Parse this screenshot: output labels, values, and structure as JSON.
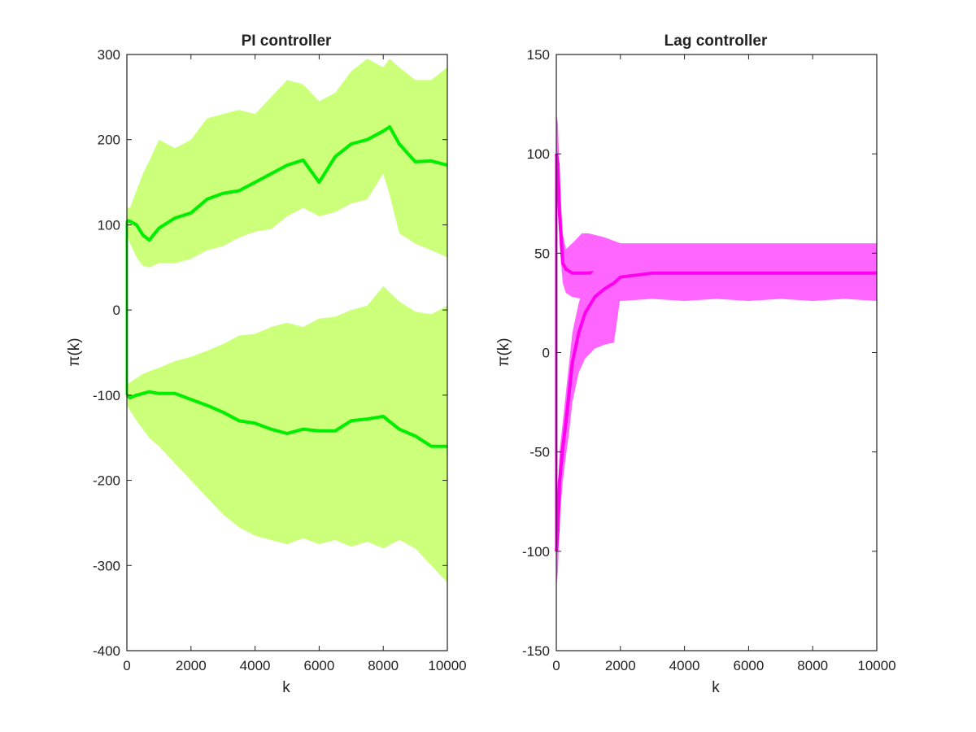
{
  "chart_data": [
    {
      "type": "area",
      "title": "PI controller",
      "xlabel": "k",
      "ylabel": "π(k)",
      "xlim": [
        0,
        10000
      ],
      "ylim": [
        -400,
        300
      ],
      "xticks": [
        "0",
        "2000",
        "4000",
        "6000",
        "8000",
        "10000"
      ],
      "yticks": [
        "300",
        "200",
        "100",
        "0",
        "-100",
        "-200",
        "-300",
        "-400"
      ],
      "grid": false,
      "colors": {
        "band": "#ccff7a",
        "line": "#00ee00"
      },
      "series": [
        {
          "k": [
            0,
            100,
            300,
            500,
            700,
            1000,
            1500,
            2000,
            2500,
            3000,
            3500,
            4000,
            4500,
            5000,
            5500,
            6000,
            6500,
            7000,
            7500,
            8000,
            8200,
            8500,
            9000,
            9500,
            10000
          ],
          "mean": [
            105,
            104,
            100,
            88,
            82,
            96,
            108,
            114,
            130,
            137,
            140,
            150,
            160,
            170,
            176,
            150,
            180,
            195,
            200,
            210,
            215,
            195,
            174,
            175,
            170
          ],
          "upper": [
            120,
            120,
            140,
            160,
            175,
            200,
            190,
            200,
            225,
            230,
            235,
            230,
            250,
            270,
            265,
            245,
            255,
            280,
            295,
            285,
            295,
            285,
            270,
            270,
            285
          ],
          "lower": [
            88,
            78,
            62,
            52,
            50,
            55,
            55,
            60,
            70,
            75,
            85,
            92,
            95,
            110,
            120,
            110,
            115,
            125,
            130,
            160,
            135,
            90,
            78,
            70,
            62
          ]
        },
        {
          "k": [
            0,
            100,
            300,
            500,
            700,
            1000,
            1500,
            2000,
            2500,
            3000,
            3500,
            4000,
            4500,
            5000,
            5500,
            6000,
            6500,
            7000,
            7500,
            8000,
            8500,
            9000,
            9500,
            10000
          ],
          "mean": [
            -100,
            -103,
            -100,
            -98,
            -96,
            -98,
            -98,
            -105,
            -112,
            -120,
            -130,
            -133,
            -140,
            -145,
            -140,
            -142,
            -142,
            -130,
            -128,
            -125,
            -140,
            -148,
            -160,
            -160
          ],
          "upper": [
            -88,
            -85,
            -80,
            -75,
            -72,
            -68,
            -60,
            -55,
            -48,
            -40,
            -30,
            -28,
            -20,
            -15,
            -20,
            -10,
            -8,
            0,
            5,
            28,
            10,
            -2,
            -5,
            5
          ],
          "lower": [
            -112,
            -118,
            -130,
            -140,
            -150,
            -160,
            -180,
            -200,
            -220,
            -240,
            -255,
            -265,
            -270,
            -275,
            -268,
            -275,
            -270,
            -278,
            -272,
            -280,
            -270,
            -280,
            -300,
            -320
          ]
        }
      ]
    },
    {
      "type": "area",
      "title": "Lag controller",
      "xlabel": "k",
      "ylabel": "π(k)",
      "xlim": [
        0,
        10000
      ],
      "ylim": [
        -150,
        150
      ],
      "xticks": [
        "0",
        "2000",
        "4000",
        "6000",
        "8000",
        "10000"
      ],
      "yticks": [
        "150",
        "100",
        "50",
        "0",
        "-50",
        "-100",
        "-150"
      ],
      "grid": false,
      "colors": {
        "band": "#ff66ff",
        "line": "#ff00ee"
      },
      "series": [
        {
          "k": [
            0,
            50,
            100,
            200,
            300,
            500,
            800,
            1000,
            1500,
            2000,
            3000,
            4000,
            5000,
            6000,
            7000,
            8000,
            9000,
            10000
          ],
          "mean": [
            100,
            95,
            70,
            45,
            42,
            40,
            40,
            40,
            41,
            40,
            40,
            40,
            40,
            40,
            40,
            40,
            40,
            40
          ],
          "upper": [
            120,
            115,
            90,
            60,
            52,
            55,
            60,
            60,
            58,
            55,
            55,
            55,
            55,
            55,
            55,
            55,
            55,
            55
          ],
          "lower": [
            85,
            80,
            55,
            35,
            30,
            28,
            27,
            26,
            27,
            26,
            27,
            26,
            27,
            26,
            27,
            26,
            27,
            26
          ]
        },
        {
          "k": [
            0,
            50,
            100,
            200,
            300,
            400,
            500,
            700,
            900,
            1200,
            1500,
            1800,
            2000,
            3000,
            4000,
            5000,
            6000,
            7000,
            8000,
            9000,
            10000
          ],
          "mean": [
            -100,
            -90,
            -65,
            -48,
            -35,
            -20,
            -5,
            10,
            20,
            28,
            32,
            35,
            38,
            40,
            40,
            40,
            40,
            40,
            40,
            40,
            40
          ],
          "upper": [
            -80,
            -70,
            -50,
            -35,
            -20,
            -5,
            10,
            25,
            35,
            42,
            50,
            52,
            50,
            50,
            50,
            50,
            50,
            50,
            50,
            50,
            50
          ],
          "lower": [
            -118,
            -110,
            -85,
            -65,
            -52,
            -40,
            -25,
            -10,
            -3,
            2,
            4,
            5,
            28,
            32,
            32,
            32,
            32,
            32,
            32,
            32,
            32
          ]
        }
      ]
    }
  ]
}
